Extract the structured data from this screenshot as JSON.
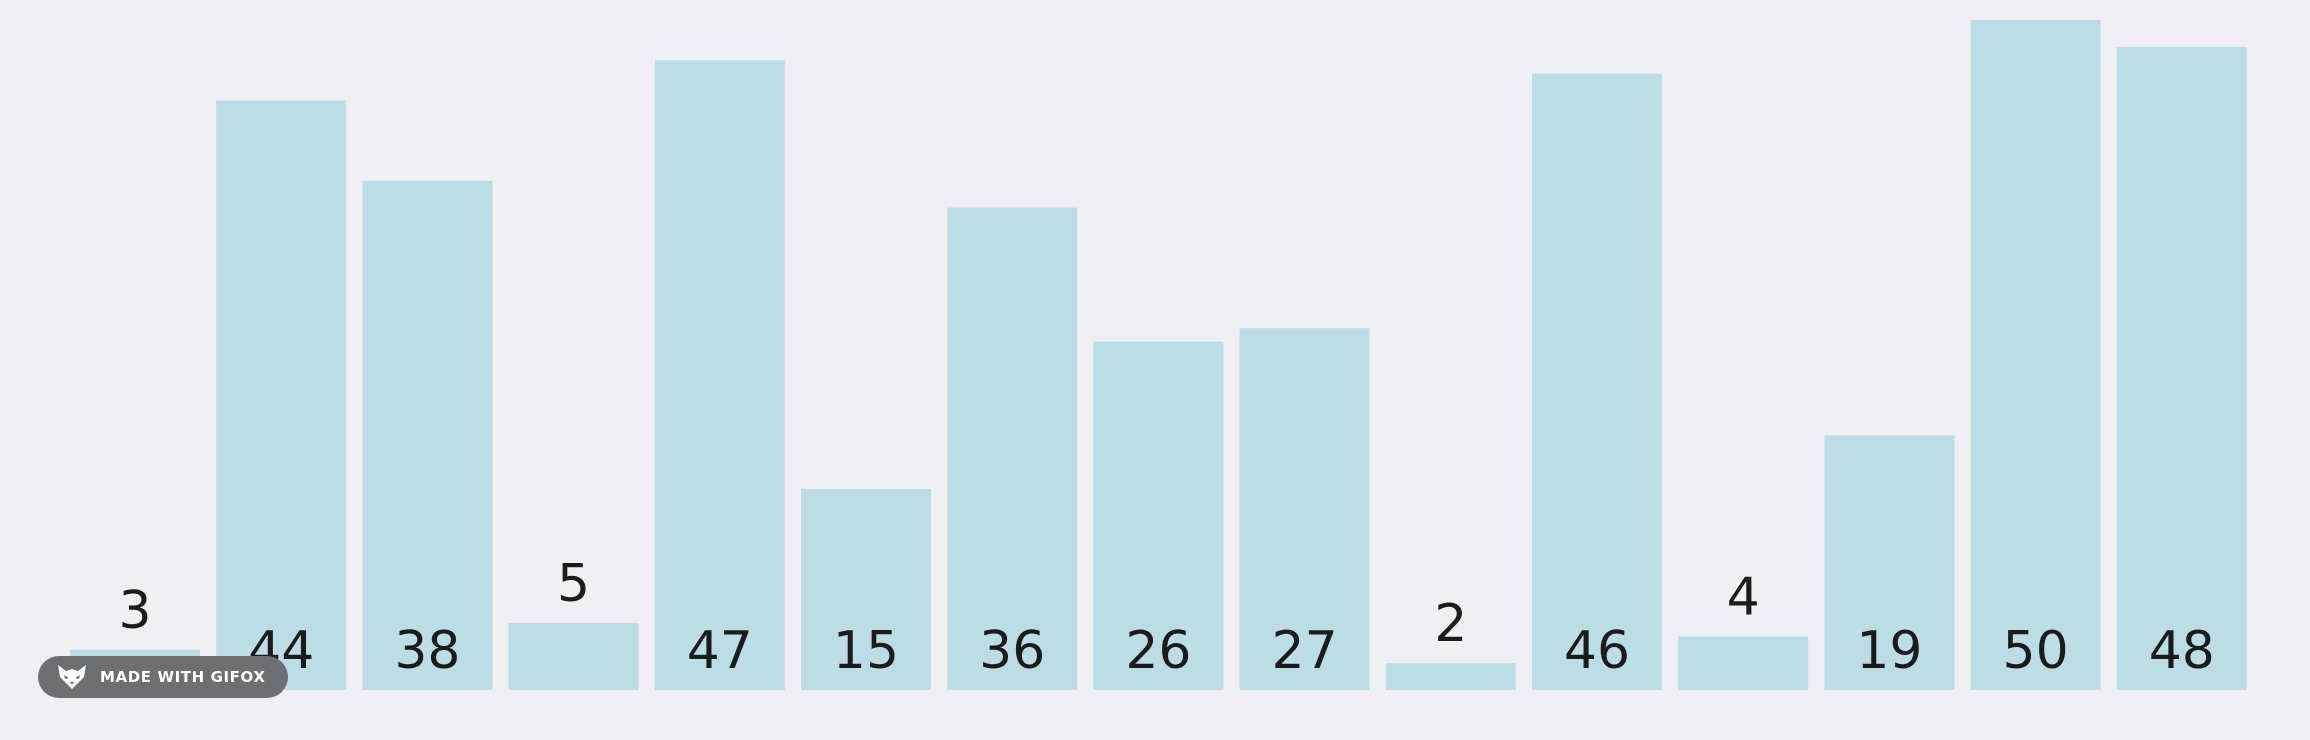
{
  "chart_data": {
    "type": "bar",
    "values": [
      3,
      44,
      38,
      5,
      47,
      15,
      36,
      26,
      27,
      2,
      46,
      4,
      19,
      50,
      48
    ],
    "labels": [
      "3",
      "44",
      "38",
      "5",
      "47",
      "15",
      "36",
      "26",
      "27",
      "2",
      "46",
      "4",
      "19",
      "50",
      "48"
    ],
    "ylim": [
      0,
      50
    ],
    "grid": false,
    "colors": {
      "bar": "#bddde6",
      "background": "#f0f0f3",
      "label": "#1b1b1b"
    }
  },
  "watermark": {
    "text": "MADE WITH GIFOX",
    "icon": "fox-logo-icon"
  }
}
